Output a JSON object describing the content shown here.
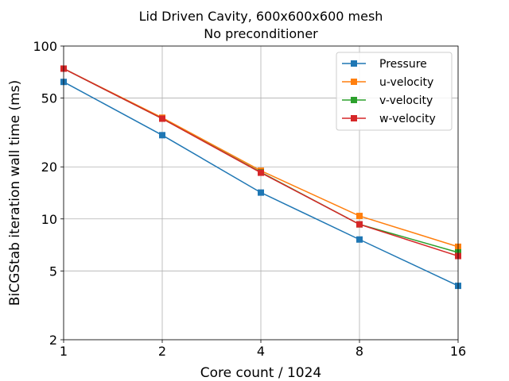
{
  "chart_data": {
    "type": "line",
    "title": "Lid Driven Cavity, 600x600x600 mesh",
    "subtitle": "No preconditioner",
    "xlabel": "Core count / 1024",
    "ylabel": "BiCGStab iteration wall time (ms)",
    "xscale": "log2",
    "yscale": "log10",
    "x": [
      1,
      2,
      4,
      8,
      16
    ],
    "xticks": [
      1,
      2,
      4,
      8,
      16
    ],
    "xtick_labels": [
      "1",
      "2",
      "4",
      "8",
      "16"
    ],
    "xlim": [
      1,
      16
    ],
    "yticks": [
      2,
      5,
      10,
      20,
      50,
      100
    ],
    "ytick_labels": [
      "2",
      "5",
      "10",
      "20",
      "50",
      "100"
    ],
    "ylim": [
      2,
      100
    ],
    "grid": true,
    "legend_position": "top-right",
    "series": [
      {
        "name": "Pressure",
        "color": "#1f77b4",
        "values": [
          62,
          30.5,
          14.2,
          7.6,
          4.1
        ]
      },
      {
        "name": "u-velocity",
        "color": "#ff7f0e",
        "values": [
          74,
          38.5,
          19.0,
          10.4,
          6.9
        ]
      },
      {
        "name": "v-velocity",
        "color": "#2ca02c",
        "values": [
          74,
          38,
          18.6,
          9.3,
          6.4
        ]
      },
      {
        "name": "w-velocity",
        "color": "#d62728",
        "values": [
          74,
          38,
          18.5,
          9.3,
          6.1
        ]
      }
    ]
  }
}
